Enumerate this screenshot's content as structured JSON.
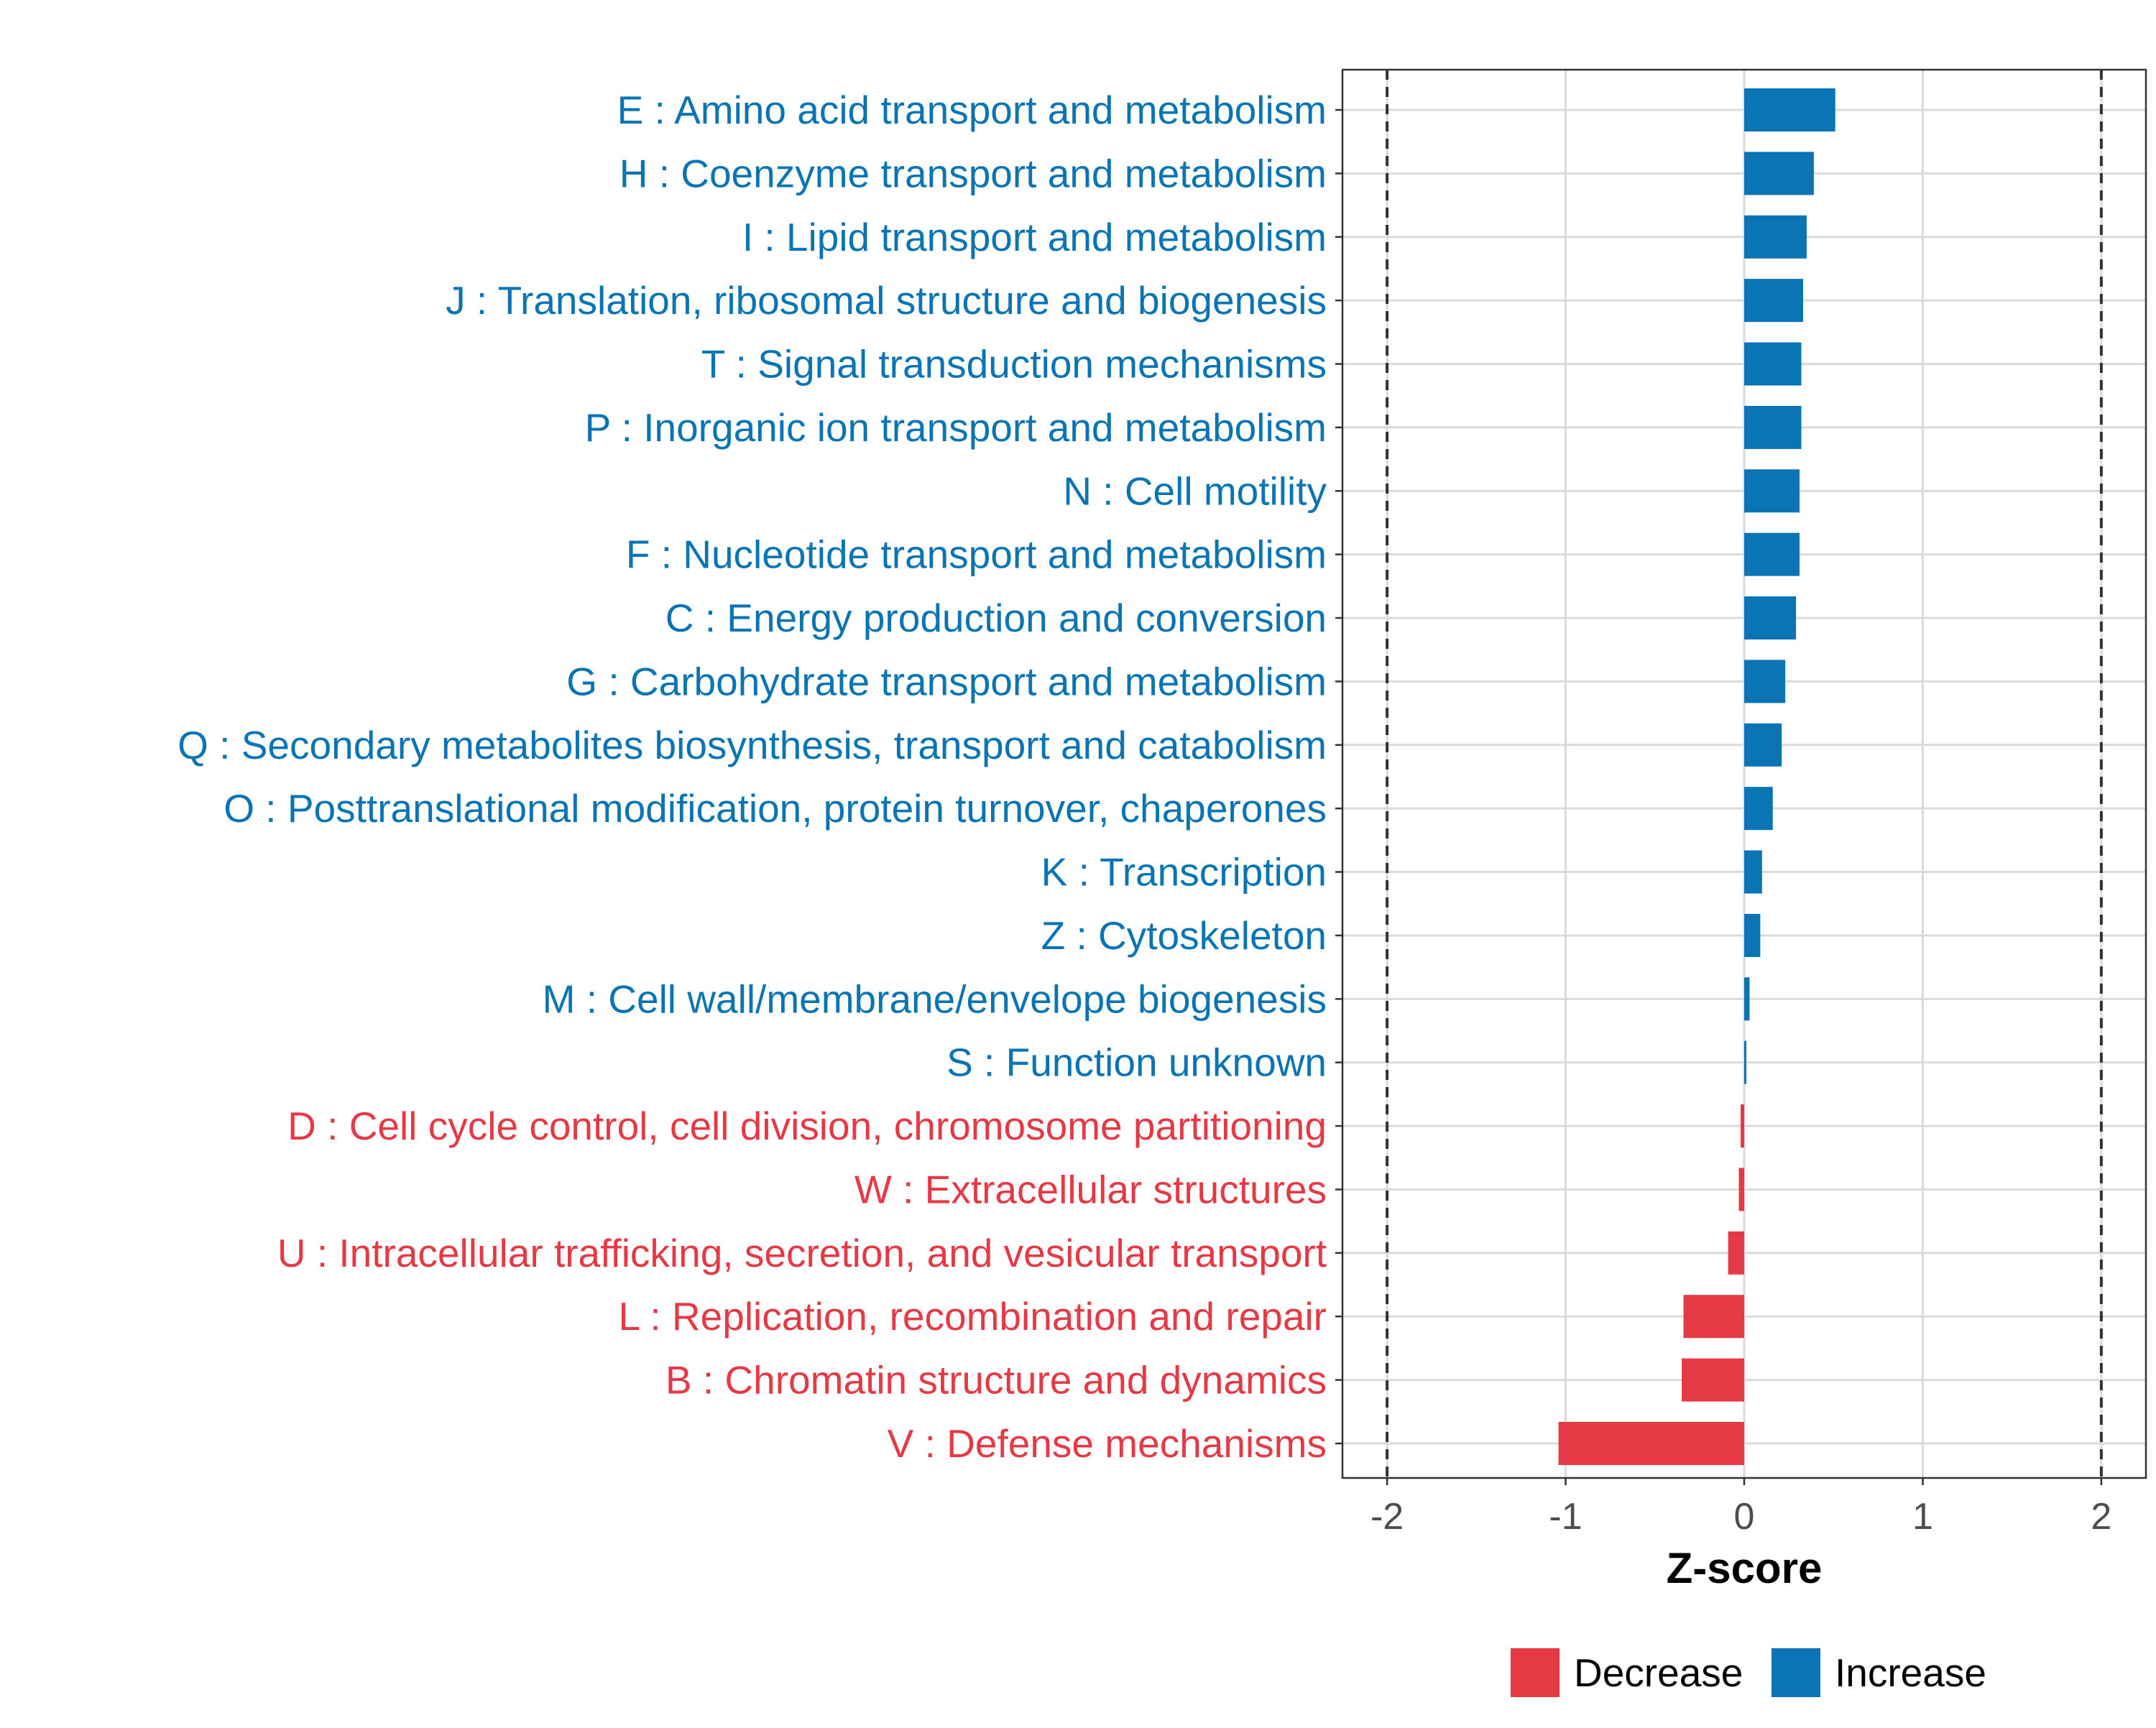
{
  "chart_data": {
    "type": "bar",
    "orientation": "horizontal",
    "xlabel": "Z-score",
    "ylabel": "",
    "xlim": [
      -2.25,
      2.25
    ],
    "xticks": [
      "-2",
      "-1",
      "0",
      "1",
      "2"
    ],
    "xtick_values": [
      -2,
      -1,
      0,
      1,
      2
    ],
    "reference_lines": [
      -2,
      2
    ],
    "grid": true,
    "legend_position": "bottom",
    "legend": [
      {
        "label": "Decrease",
        "color": "#E63946"
      },
      {
        "label": "Increase",
        "color": "#0A74B5"
      }
    ],
    "categories": [
      "E : Amino acid transport and metabolism",
      "H : Coenzyme transport and metabolism",
      "I : Lipid transport and metabolism",
      "J : Translation, ribosomal structure and biogenesis",
      "T : Signal transduction mechanisms",
      "P : Inorganic ion transport and metabolism",
      "N : Cell motility",
      "F : Nucleotide transport and metabolism",
      "C : Energy production and conversion",
      "G : Carbohydrate transport and metabolism",
      "Q : Secondary metabolites biosynthesis, transport and catabolism",
      "O : Posttranslational modification, protein turnover, chaperones",
      "K : Transcription",
      "Z : Cytoskeleton",
      "M : Cell wall/membrane/envelope biogenesis",
      "S : Function unknown",
      "D : Cell cycle control, cell division, chromosome partitioning",
      "W : Extracellular structures",
      "U : Intracellular trafficking, secretion, and vesicular transport",
      "L : Replication, recombination and repair",
      "B : Chromatin structure and dynamics",
      "V : Defense mechanisms"
    ],
    "values": [
      0.51,
      0.39,
      0.35,
      0.33,
      0.32,
      0.32,
      0.31,
      0.31,
      0.29,
      0.23,
      0.21,
      0.16,
      0.1,
      0.09,
      0.03,
      0.01,
      -0.02,
      -0.03,
      -0.09,
      -0.34,
      -0.35,
      -1.04
    ],
    "groups": [
      "Increase",
      "Increase",
      "Increase",
      "Increase",
      "Increase",
      "Increase",
      "Increase",
      "Increase",
      "Increase",
      "Increase",
      "Increase",
      "Increase",
      "Increase",
      "Increase",
      "Increase",
      "Increase",
      "Decrease",
      "Decrease",
      "Decrease",
      "Decrease",
      "Decrease",
      "Decrease"
    ]
  }
}
